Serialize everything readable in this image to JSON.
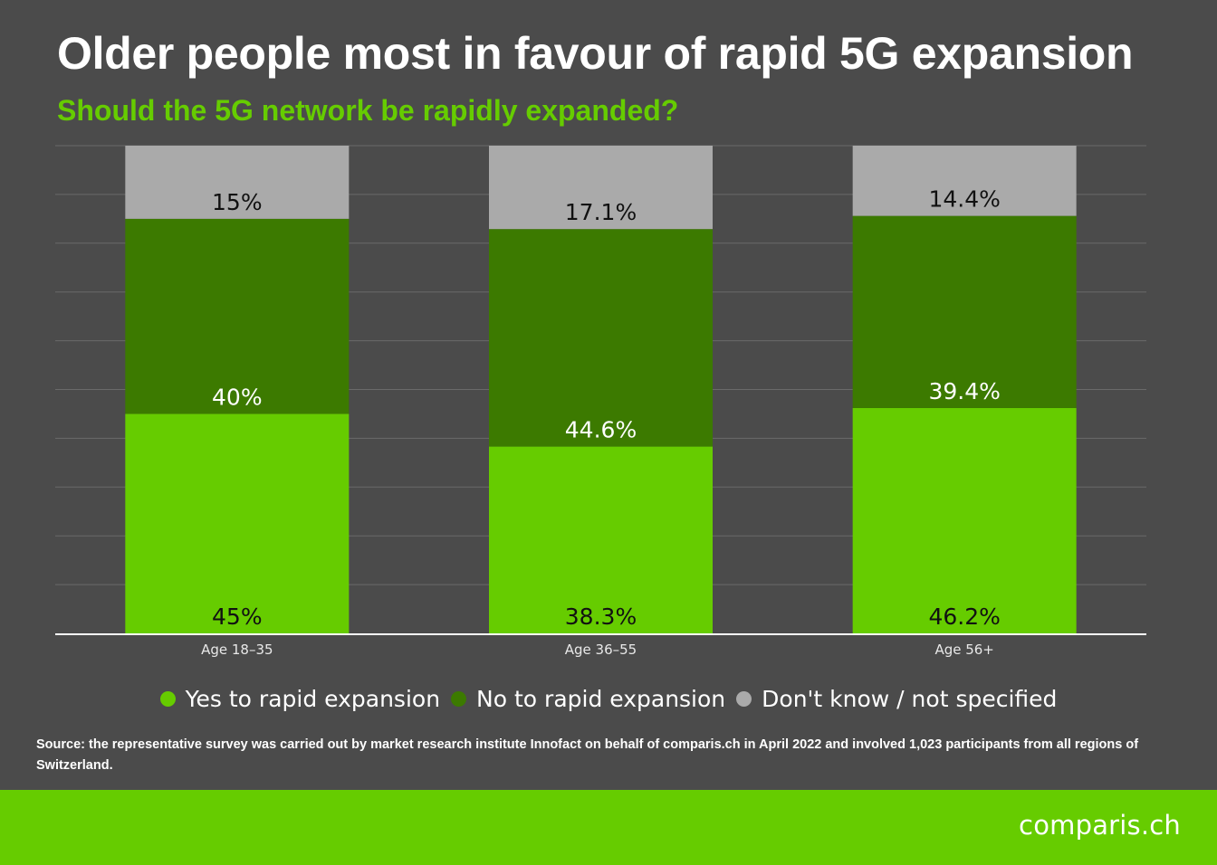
{
  "title": "Older people most in favour of rapid 5G expansion",
  "subtitle": "Should the 5G network be rapidly expanded?",
  "colors": {
    "background": "#4b4b4b",
    "yes": "#66cc00",
    "no": "#3c7a00",
    "dont_know": "#aaaaaa",
    "accent": "#66cc00"
  },
  "chart_data": {
    "type": "bar",
    "stacked": true,
    "categories": [
      "Age 18–35",
      "Age 36–55",
      "Age 56+"
    ],
    "series": [
      {
        "name": "Yes to rapid expansion",
        "values": [
          45,
          38.3,
          46.2
        ],
        "labels": [
          "45%",
          "38.3%",
          "46.2%"
        ],
        "color": "#66cc00"
      },
      {
        "name": "No to rapid expansion",
        "values": [
          40,
          44.6,
          39.4
        ],
        "labels": [
          "40%",
          "44.6%",
          "39.4%"
        ],
        "color": "#3c7a00"
      },
      {
        "name": "Don't know / not specified",
        "values": [
          15,
          17.1,
          14.4
        ],
        "labels": [
          "15%",
          "17.1%",
          "14.4%"
        ],
        "color": "#aaaaaa"
      }
    ],
    "ylim": [
      0,
      100
    ],
    "grid": true,
    "legend": "bottom"
  },
  "source": "Source: the representative survey was carried out by market research institute Innofact on behalf of comparis.ch in April 2022 and involved 1,023 participants from all regions of Switzerland.",
  "brand": "comparis.ch"
}
